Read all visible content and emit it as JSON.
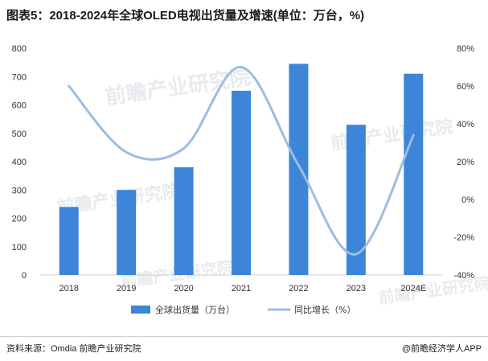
{
  "header": {
    "title": "图表5：2018-2024年全球OLED电视出货量及增速(单位：万台，%)"
  },
  "footer": {
    "source": "资料来源：Omdia 前瞻产业研究院",
    "brand": "@前瞻经济学人APP"
  },
  "watermark": {
    "text": "前瞻产业研究院"
  },
  "colors": {
    "bar": "#3d85d8",
    "line": "#9bbde0"
  },
  "chart_data": {
    "type": "bar",
    "categories": [
      "2018",
      "2019",
      "2020",
      "2021",
      "2022",
      "2023",
      "2024E"
    ],
    "series": [
      {
        "name": "全球出货量（万台）",
        "type": "bar",
        "axis": "left",
        "values": [
          240,
          300,
          380,
          650,
          745,
          530,
          710
        ]
      },
      {
        "name": "同比增长（%）",
        "type": "line",
        "smooth": true,
        "axis": "right",
        "values": [
          60,
          25,
          27,
          70,
          18,
          -29,
          34
        ]
      }
    ],
    "ylim": [
      0,
      800
    ],
    "yticks": [
      "0",
      "100",
      "200",
      "300",
      "400",
      "500",
      "600",
      "700",
      "800"
    ],
    "y2lim": [
      -40,
      80
    ],
    "y2ticks": [
      "-40%",
      "-20%",
      "0%",
      "20%",
      "40%",
      "60%",
      "80%"
    ],
    "legend_position": "bottom-center",
    "grid": false
  }
}
